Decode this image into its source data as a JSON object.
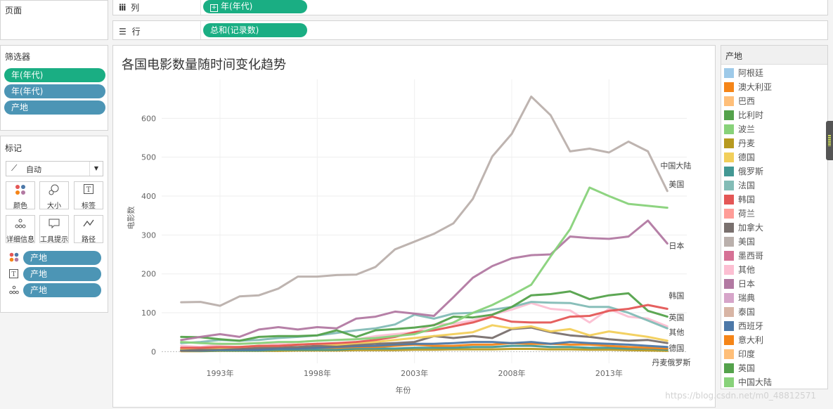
{
  "pages_panel": {
    "title": "页面"
  },
  "columns_shelf": {
    "icon": "columns-icon",
    "label": "列",
    "pill": "年(年代)"
  },
  "rows_shelf": {
    "icon": "rows-icon",
    "label": "行",
    "pill": "总和(记录数)"
  },
  "filters": {
    "title": "筛选器",
    "items": [
      "年(年代)",
      "年(年代)",
      "产地"
    ]
  },
  "marks": {
    "title": "标记",
    "type": "自动",
    "buttons": [
      {
        "icon": "color-icon",
        "label": "颜色"
      },
      {
        "icon": "size-icon",
        "label": "大小"
      },
      {
        "icon": "label-icon",
        "label": "标签"
      },
      {
        "icon": "detail-icon",
        "label": "详细信息"
      },
      {
        "icon": "tooltip-icon",
        "label": "工具提示"
      },
      {
        "icon": "path-icon",
        "label": "路径"
      }
    ],
    "fields": [
      {
        "icon": "color-icon",
        "label": "产地"
      },
      {
        "icon": "label-icon",
        "label": "产地"
      },
      {
        "icon": "detail-icon",
        "label": "产地"
      }
    ]
  },
  "legend": {
    "title": "产地",
    "items": [
      {
        "label": "阿根廷",
        "color": "#9ecae9"
      },
      {
        "label": "澳大利亚",
        "color": "#f58518"
      },
      {
        "label": "巴西",
        "color": "#ffbf79"
      },
      {
        "label": "比利时",
        "color": "#54a24b"
      },
      {
        "label": "波兰",
        "color": "#88d27a"
      },
      {
        "label": "丹麦",
        "color": "#b79a20"
      },
      {
        "label": "德国",
        "color": "#f2cf5b"
      },
      {
        "label": "俄罗斯",
        "color": "#439894"
      },
      {
        "label": "法国",
        "color": "#83bcb6"
      },
      {
        "label": "韩国",
        "color": "#e45756"
      },
      {
        "label": "荷兰",
        "color": "#ff9d98"
      },
      {
        "label": "加拿大",
        "color": "#79706e"
      },
      {
        "label": "美国",
        "color": "#bab0ac"
      },
      {
        "label": "墨西哥",
        "color": "#d67195"
      },
      {
        "label": "其他",
        "color": "#fcbfd2"
      },
      {
        "label": "日本",
        "color": "#b279a2"
      },
      {
        "label": "瑞典",
        "color": "#d6a5c9"
      },
      {
        "label": "泰国",
        "color": "#d8b5a5"
      },
      {
        "label": "西班牙",
        "color": "#4c78a8"
      },
      {
        "label": "意大利",
        "color": "#f58518"
      },
      {
        "label": "印度",
        "color": "#ffbf79"
      },
      {
        "label": "英国",
        "color": "#54a24b"
      },
      {
        "label": "中国大陆",
        "color": "#88d27a"
      }
    ]
  },
  "watermark": "https://blog.csdn.net/m0_48812571",
  "chart_data": {
    "type": "line",
    "title": "各国电影数量随时间变化趋势",
    "xlabel": "年份",
    "ylabel": "电影数",
    "xlim": [
      1990,
      2017
    ],
    "ylim": [
      -30,
      700
    ],
    "x_ticks": [
      {
        "value": 1993,
        "label": "1993年"
      },
      {
        "value": 1998,
        "label": "1998年"
      },
      {
        "value": 2003,
        "label": "2003年"
      },
      {
        "value": 2008,
        "label": "2008年"
      },
      {
        "value": 2013,
        "label": "2013年"
      }
    ],
    "y_ticks": [
      0,
      100,
      200,
      300,
      400,
      500,
      600
    ],
    "x": [
      1991,
      1992,
      1993,
      1994,
      1995,
      1996,
      1997,
      1998,
      1999,
      2000,
      2001,
      2002,
      2003,
      2004,
      2005,
      2006,
      2007,
      2008,
      2009,
      2010,
      2011,
      2012,
      2013,
      2014,
      2015,
      2016
    ],
    "series": [
      {
        "name": "美国",
        "color": "#bab0ac",
        "label": "美国",
        "values": [
          127,
          128,
          118,
          142,
          145,
          162,
          193,
          193,
          197,
          198,
          218,
          263,
          283,
          303,
          330,
          393,
          502,
          560,
          656,
          608,
          515,
          522,
          512,
          540,
          515,
          413
        ]
      },
      {
        "name": "中国大陆",
        "color": "#88d27a",
        "label": "中国大陆",
        "values": [
          25,
          22,
          20,
          20,
          22,
          25,
          25,
          28,
          30,
          32,
          35,
          40,
          45,
          60,
          75,
          100,
          120,
          145,
          172,
          245,
          315,
          422,
          400,
          380,
          375,
          370
        ]
      },
      {
        "name": "日本",
        "color": "#b279a2",
        "label": "日本",
        "values": [
          30,
          38,
          45,
          38,
          57,
          63,
          57,
          63,
          60,
          85,
          90,
          103,
          98,
          92,
          140,
          190,
          220,
          240,
          248,
          250,
          296,
          292,
          290,
          296,
          337,
          278
        ]
      },
      {
        "name": "韩国",
        "color": "#e45756",
        "label": "韩国",
        "values": [
          10,
          10,
          12,
          12,
          15,
          15,
          18,
          20,
          22,
          25,
          30,
          38,
          50,
          55,
          65,
          75,
          90,
          77,
          75,
          75,
          90,
          92,
          105,
          110,
          120,
          110
        ]
      },
      {
        "name": "英国",
        "color": "#54a24b",
        "label": "英国",
        "values": [
          38,
          37,
          32,
          28,
          38,
          40,
          40,
          42,
          55,
          38,
          55,
          58,
          62,
          68,
          90,
          88,
          95,
          115,
          145,
          148,
          155,
          135,
          145,
          150,
          105,
          90
        ]
      },
      {
        "name": "法国",
        "color": "#83bcb6",
        "label": "",
        "values": [
          22,
          25,
          30,
          28,
          30,
          35,
          38,
          42,
          48,
          55,
          60,
          70,
          95,
          85,
          98,
          100,
          108,
          115,
          128,
          126,
          125,
          115,
          115,
          100,
          80,
          60
        ]
      },
      {
        "name": "其他",
        "color": "#fcbfd2",
        "label": "其他",
        "values": [
          15,
          12,
          18,
          20,
          22,
          20,
          25,
          28,
          30,
          32,
          40,
          45,
          50,
          70,
          72,
          80,
          95,
          108,
          125,
          110,
          106,
          75,
          110,
          90,
          85,
          65
        ]
      },
      {
        "name": "德国",
        "color": "#f2cf5b",
        "label": "德国",
        "values": [
          8,
          10,
          10,
          12,
          15,
          15,
          18,
          20,
          18,
          22,
          25,
          30,
          35,
          40,
          45,
          50,
          68,
          60,
          65,
          52,
          58,
          42,
          52,
          45,
          38,
          28
        ]
      },
      {
        "name": "加拿大",
        "color": "#79706e",
        "label": "",
        "values": [
          5,
          5,
          8,
          8,
          10,
          12,
          12,
          15,
          15,
          18,
          20,
          22,
          25,
          40,
          35,
          40,
          35,
          58,
          62,
          50,
          42,
          38,
          32,
          28,
          30,
          22
        ]
      },
      {
        "name": "西班牙",
        "color": "#4c78a8",
        "label": "",
        "values": [
          3,
          3,
          5,
          5,
          5,
          8,
          8,
          10,
          12,
          14,
          15,
          18,
          20,
          20,
          22,
          25,
          25,
          22,
          25,
          20,
          25,
          22,
          20,
          18,
          15,
          12
        ]
      },
      {
        "name": "意大利",
        "color": "#f58518",
        "label": "",
        "values": [
          2,
          3,
          5,
          6,
          6,
          8,
          8,
          10,
          10,
          12,
          12,
          15,
          18,
          15,
          15,
          18,
          18,
          22,
          20,
          20,
          18,
          18,
          15,
          12,
          10,
          8
        ]
      },
      {
        "name": "俄罗斯",
        "color": "#439894",
        "label": "",
        "values": [
          2,
          2,
          3,
          3,
          3,
          5,
          5,
          5,
          5,
          8,
          8,
          8,
          10,
          10,
          10,
          12,
          12,
          15,
          15,
          12,
          12,
          10,
          10,
          8,
          8,
          5
        ]
      },
      {
        "name": "丹麦",
        "color": "#b79a20",
        "label": "丹麦俄罗斯",
        "values": [
          1,
          1,
          2,
          2,
          2,
          2,
          3,
          3,
          3,
          4,
          4,
          4,
          5,
          5,
          6,
          6,
          6,
          7,
          7,
          6,
          6,
          5,
          5,
          4,
          3,
          2
        ]
      }
    ]
  }
}
